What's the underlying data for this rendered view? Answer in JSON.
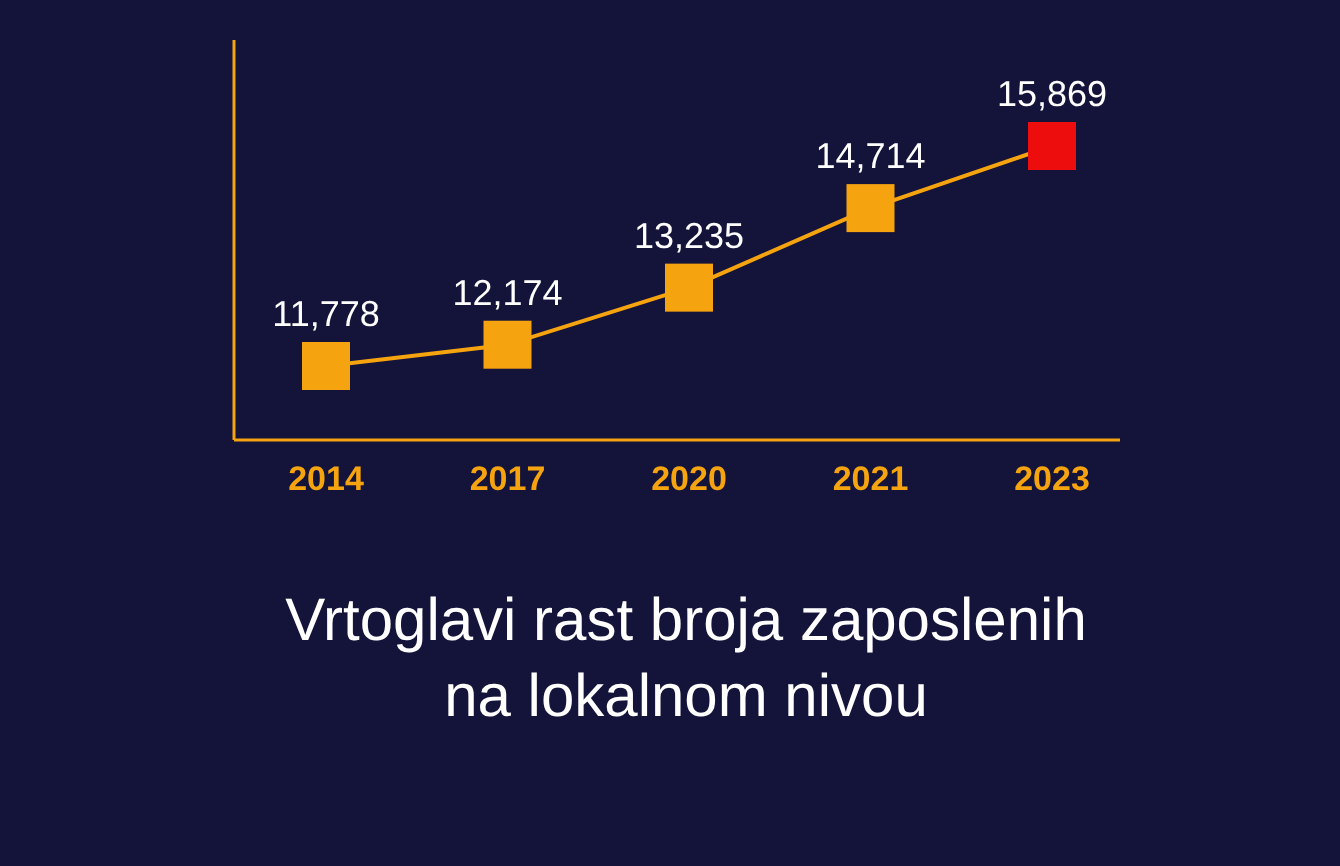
{
  "chart_data": {
    "type": "line",
    "title": "Vrtoglavi rast broja zaposlenih na lokalnom nivou",
    "categories": [
      "2014",
      "2017",
      "2020",
      "2021",
      "2023"
    ],
    "values": [
      11778,
      12174,
      13235,
      14714,
      15869
    ],
    "color": "#f5a30f",
    "colors": [
      "#f5a30f",
      "#f5a30f",
      "#f5a30f",
      "#f5a30f",
      "#ee0d0d"
    ],
    "data_labels": true,
    "value_labels": [
      "11,778",
      "12,174",
      "13,235",
      "14,714",
      "15,869"
    ],
    "marker": "square",
    "line_style": "solid"
  }
}
